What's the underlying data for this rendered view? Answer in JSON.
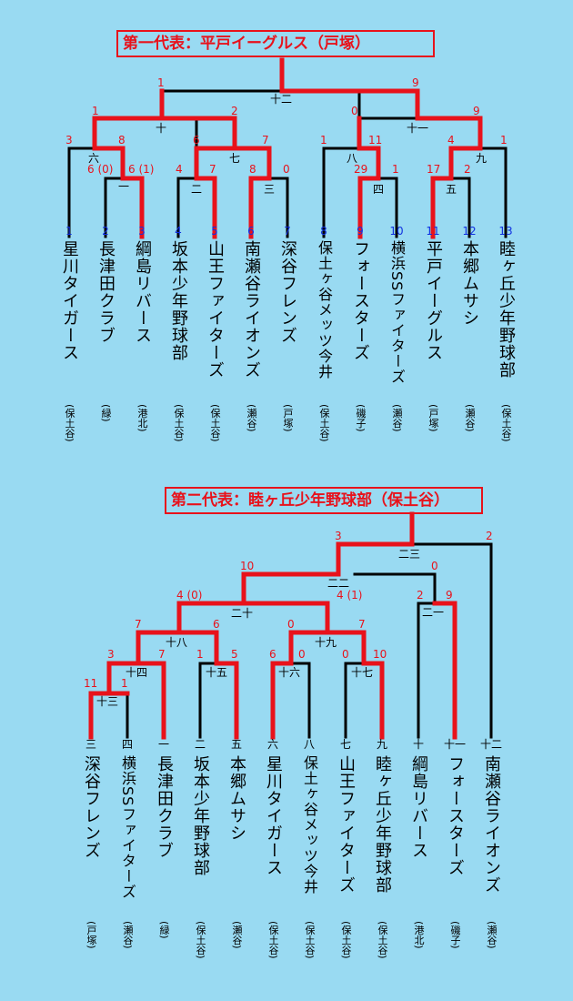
{
  "section1": {
    "title": "第一代表：平戸イーグルス（戸塚）",
    "rounds": [
      "十二",
      "十",
      "十一",
      "六",
      "七",
      "八",
      "九",
      "一",
      "二",
      "三",
      "四",
      "五"
    ],
    "scores": [
      "1",
      "9",
      "1",
      "2",
      "0",
      "9",
      "3",
      "8",
      "6",
      "7",
      "1",
      "11",
      "4",
      "1",
      "6 (0)",
      "6 (1)",
      "4",
      "7",
      "8",
      "0",
      "29",
      "1",
      "17",
      "2"
    ],
    "teams": [
      {
        "num": "1",
        "name": "星川タイガース",
        "area": "(保土谷)"
      },
      {
        "num": "2",
        "name": "長津田クラブ",
        "area": "(緑)"
      },
      {
        "num": "3",
        "name": "綱島リバース",
        "area": "(港北)"
      },
      {
        "num": "4",
        "name": "坂本少年野球部",
        "area": "(保土谷)"
      },
      {
        "num": "5",
        "name": "山王ファイターズ",
        "area": "(保土谷)"
      },
      {
        "num": "6",
        "name": "南瀬谷ライオンズ",
        "area": "(瀬谷)"
      },
      {
        "num": "7",
        "name": "深谷フレンズ",
        "area": "(戸塚)"
      },
      {
        "num": "8",
        "name": "保土ヶ谷メッツ今井",
        "area": "(保土谷)"
      },
      {
        "num": "9",
        "name": "フォースターズ",
        "area": "(磯子)"
      },
      {
        "num": "10",
        "name": "横浜SSファイターズ",
        "area": "(瀬谷)"
      },
      {
        "num": "11",
        "name": "平戸イーグルス",
        "area": "(戸塚)"
      },
      {
        "num": "12",
        "name": "本郷ムサシ",
        "area": "(瀬谷)"
      },
      {
        "num": "13",
        "name": "睦ヶ丘少年野球部",
        "area": "(保土谷)"
      }
    ]
  },
  "section2": {
    "title": "第二代表：睦ヶ丘少年野球部（保土谷）",
    "rounds": [
      "二三",
      "二二",
      "二一",
      "二十",
      "十八",
      "十九",
      "十四",
      "十五",
      "十六",
      "十七",
      "十三"
    ],
    "scores": [
      "3",
      "2",
      "10",
      "0",
      "4 (0)",
      "4 (1)",
      "2",
      "9",
      "7",
      "6",
      "0",
      "7",
      "3",
      "7",
      "1",
      "5",
      "6",
      "0",
      "0",
      "10",
      "11",
      "1"
    ],
    "teams": [
      {
        "num": "三",
        "name": "深谷フレンズ",
        "area": "(戸塚)"
      },
      {
        "num": "四",
        "name": "横浜SSファイターズ",
        "area": "(瀬谷)"
      },
      {
        "num": "一",
        "name": "長津田クラブ",
        "area": "(緑)"
      },
      {
        "num": "二",
        "name": "坂本少年野球部",
        "area": "(保土谷)"
      },
      {
        "num": "五",
        "name": "本郷ムサシ",
        "area": "(瀬谷)"
      },
      {
        "num": "六",
        "name": "星川タイガース",
        "area": "(保土谷)"
      },
      {
        "num": "八",
        "name": "保土ヶ谷メッツ今井",
        "area": "(保土谷)"
      },
      {
        "num": "七",
        "name": "山王ファイターズ",
        "area": "(保土谷)"
      },
      {
        "num": "九",
        "name": "睦ヶ丘少年野球部",
        "area": "(保土谷)"
      },
      {
        "num": "十",
        "name": "綱島リバース",
        "area": "(港北)"
      },
      {
        "num": "十一",
        "name": "フォースターズ",
        "area": "(磯子)"
      },
      {
        "num": "十二",
        "name": "南瀬谷ライオンズ",
        "area": "(瀬谷)"
      }
    ]
  },
  "colors": {
    "background": "#99daf2",
    "winner": "#e8121b",
    "loser": "#000000",
    "entry_number": "#1030e0"
  }
}
